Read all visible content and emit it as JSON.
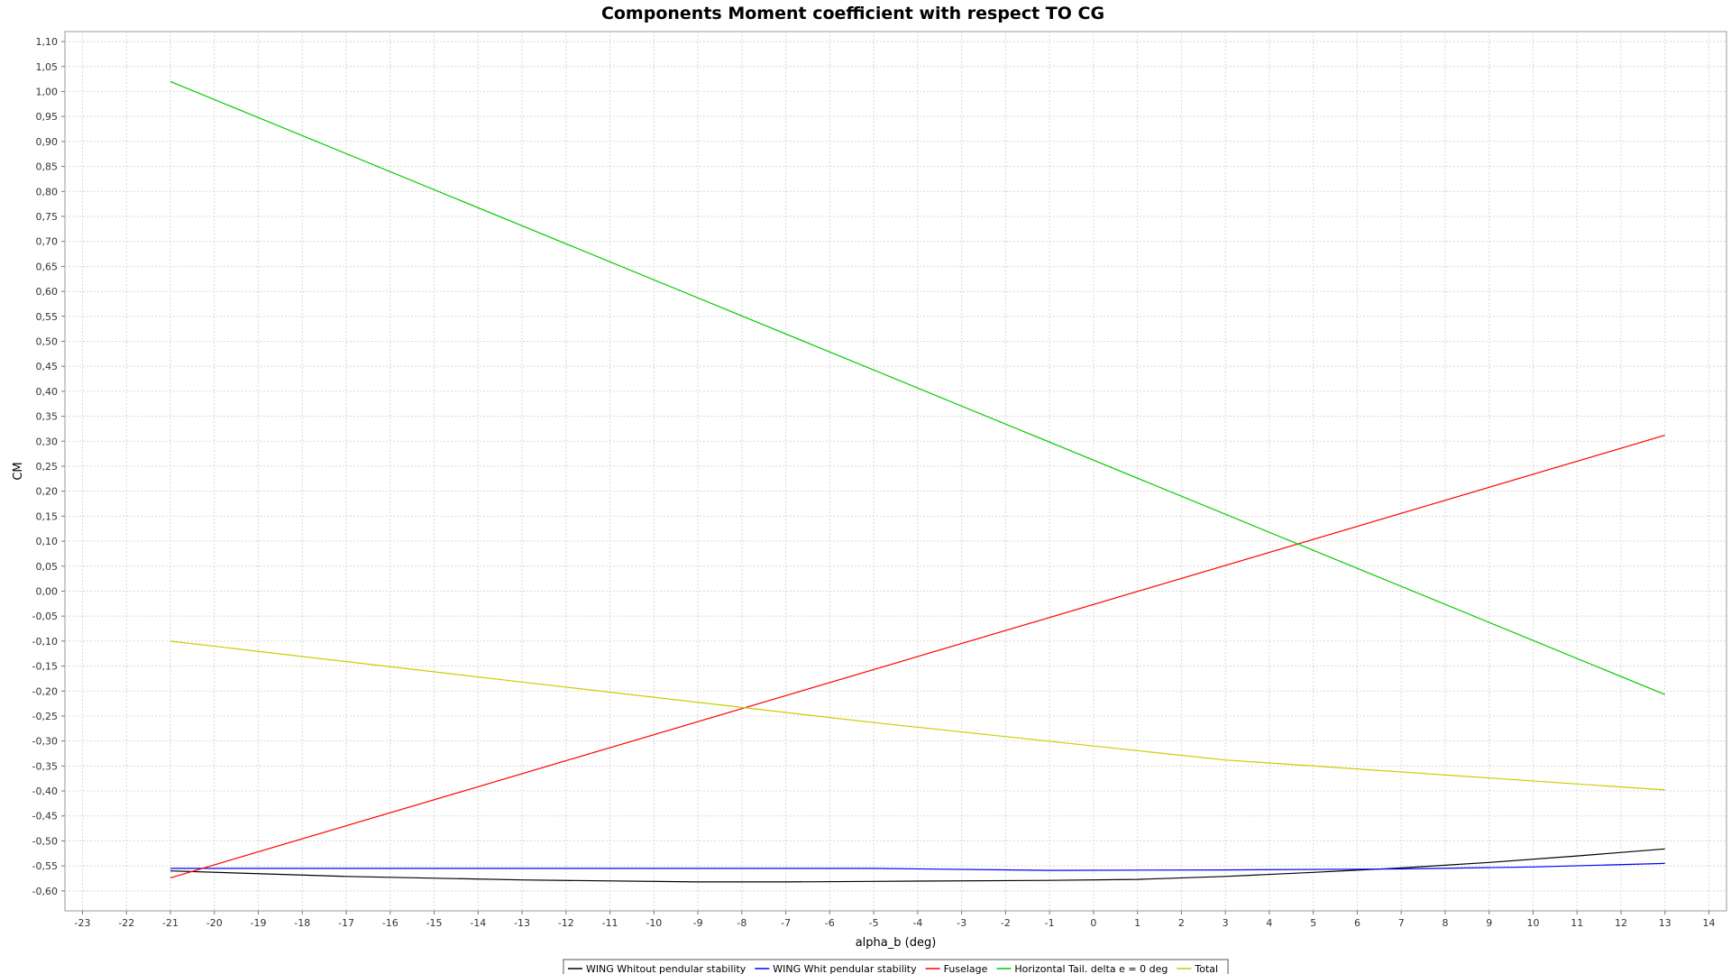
{
  "chart_data": {
    "type": "line",
    "title": "Components Moment coefficient with respect TO CG",
    "xlabel": "alpha_b (deg)",
    "ylabel": "CM",
    "xlim": [
      -23.4,
      14.4
    ],
    "ylim": [
      -0.64,
      1.12
    ],
    "x_ticks": [
      -23,
      -22,
      -21,
      -20,
      -19,
      -18,
      -17,
      -16,
      -15,
      -14,
      -13,
      -12,
      -11,
      -10,
      -9,
      -8,
      -7,
      -6,
      -5,
      -4,
      -3,
      -2,
      -1,
      0,
      1,
      2,
      3,
      4,
      5,
      6,
      7,
      8,
      9,
      10,
      11,
      12,
      13,
      14
    ],
    "x_tick_labels": [
      "-23",
      "-22",
      "-21",
      "-20",
      "-19",
      "-18",
      "-17",
      "-16",
      "-15",
      "-14",
      "-13",
      "-12",
      "-11",
      "-10",
      "-9",
      "-8",
      "-7",
      "-6",
      "-5",
      "-4",
      "-3",
      "-2",
      "-1",
      "0",
      "1",
      "2",
      "3",
      "4",
      "5",
      "6",
      "7",
      "8",
      "9",
      "10",
      "11",
      "12",
      "13",
      "14"
    ],
    "y_ticks": [
      -0.6,
      -0.55,
      -0.5,
      -0.45,
      -0.4,
      -0.35,
      -0.3,
      -0.25,
      -0.2,
      -0.15,
      -0.1,
      -0.05,
      0,
      0.05,
      0.1,
      0.15,
      0.2,
      0.25,
      0.3,
      0.35,
      0.4,
      0.45,
      0.5,
      0.55,
      0.6,
      0.65,
      0.7,
      0.75,
      0.8,
      0.85,
      0.9,
      0.95,
      1.0,
      1.05,
      1.1
    ],
    "y_tick_labels": [
      "-0,60",
      "-0,55",
      "-0,50",
      "-0,45",
      "-0,40",
      "-0,35",
      "-0,30",
      "-0,25",
      "-0,20",
      "-0,15",
      "-0,10",
      "-0,05",
      "0,00",
      "0,05",
      "0,10",
      "0,15",
      "0,20",
      "0,25",
      "0,30",
      "0,35",
      "0,40",
      "0,45",
      "0,50",
      "0,55",
      "0,60",
      "0,65",
      "0,70",
      "0,75",
      "0,80",
      "0,85",
      "0,90",
      "0,95",
      "1,00",
      "1,05",
      "1,10"
    ],
    "grid": true,
    "legend_position": "bottom-center",
    "series": [
      {
        "name": "WING Whitout pendular stability",
        "color": "#000000",
        "x": [
          -21,
          -17,
          -13,
          -9,
          -7,
          -5,
          -1,
          1,
          3,
          5,
          7,
          9,
          11,
          13
        ],
        "y": [
          -0.56,
          -0.571,
          -0.578,
          -0.582,
          -0.582,
          -0.581,
          -0.579,
          -0.577,
          -0.571,
          -0.563,
          -0.554,
          -0.543,
          -0.53,
          -0.516
        ]
      },
      {
        "name": "WING Whit pendular stability",
        "color": "#0000ff",
        "x": [
          -21,
          -13,
          -5,
          -1,
          3,
          7,
          10,
          13
        ],
        "y": [
          -0.555,
          -0.555,
          -0.555,
          -0.559,
          -0.558,
          -0.556,
          -0.552,
          -0.545
        ]
      },
      {
        "name": "Fuselage",
        "color": "#ff0000",
        "x": [
          -21,
          13
        ],
        "y": [
          -0.574,
          0.312
        ]
      },
      {
        "name": "Horizontal Tail. delta e = 0 deg",
        "color": "#00cc00",
        "x": [
          -21,
          13
        ],
        "y": [
          1.02,
          -0.207
        ]
      },
      {
        "name": "Total",
        "color": "#cccc00",
        "x": [
          -21,
          -13,
          -5,
          3,
          13
        ],
        "y": [
          -0.1,
          -0.182,
          -0.263,
          -0.338,
          -0.398
        ]
      }
    ]
  }
}
